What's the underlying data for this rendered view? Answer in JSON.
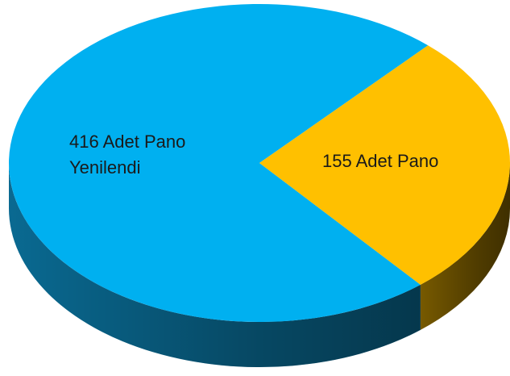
{
  "chart_data": {
    "type": "pie",
    "values": [
      416,
      155
    ],
    "value_labels": [
      "416 Adet Pano Yenilendi",
      "155 Adet Pano"
    ],
    "colors": [
      "#00b0f0",
      "#ffc000"
    ],
    "side_colors": [
      "#0a6f99",
      "#7d5e00"
    ]
  }
}
